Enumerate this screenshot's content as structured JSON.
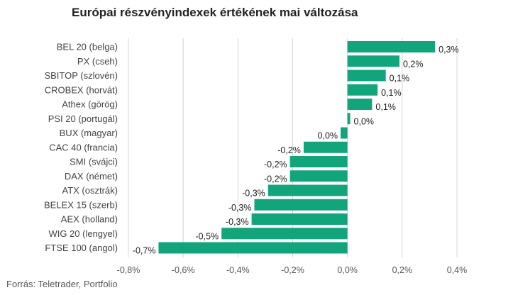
{
  "title": "Európai részvényindexek értékének mai változása",
  "source": "Forrás: Teletrader, Portfolio",
  "chart_data": {
    "type": "bar",
    "orientation": "horizontal",
    "title": "Európai részvényindexek értékének mai változása",
    "xlabel": "",
    "ylabel": "",
    "xlim": [
      -0.8,
      0.4
    ],
    "grid": true,
    "bar_color": "#12a57c",
    "x_ticks": [
      -0.8,
      -0.6,
      -0.4,
      -0.2,
      0.0,
      0.2,
      0.4
    ],
    "x_tick_labels": [
      "-0,8%",
      "-0,6%",
      "-0,4%",
      "-0,2%",
      "0,0%",
      "0,2%",
      "0,4%"
    ],
    "categories": [
      "BEL 20 (belga)",
      "PX (cseh)",
      "SBITOP (szlovén)",
      "CROBEX (horvát)",
      "Athex (görög)",
      "PSI 20 (portugál)",
      "BUX (magyar)",
      "CAC 40 (francia)",
      "SMI (svájci)",
      "DAX (német)",
      "ATX (osztrák)",
      "BELEX 15 (szerb)",
      "AEX (holland)",
      "WIG 20 (lengyel)",
      "FTSE 100 (angol)"
    ],
    "values": [
      0.32,
      0.19,
      0.14,
      0.11,
      0.09,
      0.01,
      -0.025,
      -0.16,
      -0.21,
      -0.21,
      -0.29,
      -0.34,
      -0.35,
      -0.46,
      -0.69
    ],
    "value_labels": [
      "0,3%",
      "0,2%",
      "0,1%",
      "0,1%",
      "0,1%",
      "0,0%",
      "0,0%",
      "-0,2%",
      "-0,2%",
      "-0,2%",
      "-0,3%",
      "-0,3%",
      "-0,3%",
      "-0,5%",
      "-0,7%"
    ]
  }
}
